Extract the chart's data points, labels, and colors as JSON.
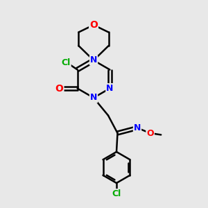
{
  "bg_color": "#e8e8e8",
  "bond_color": "#000000",
  "bond_width": 1.8,
  "atom_colors": {
    "O": "#ff0000",
    "N": "#0000ff",
    "Cl": "#00aa00",
    "C": "#000000"
  },
  "font_size": 9,
  "fig_size": [
    3.0,
    3.0
  ],
  "dpi": 100
}
